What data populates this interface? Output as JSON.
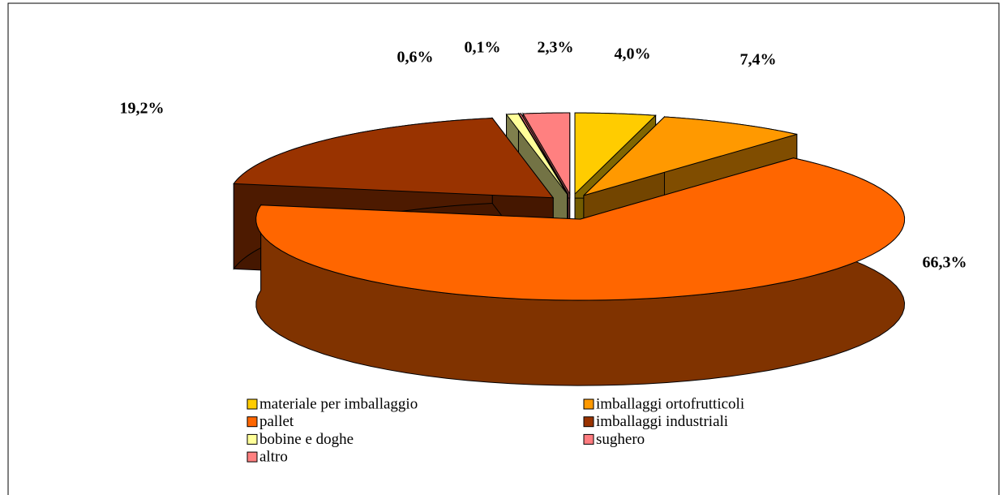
{
  "chart_data": {
    "type": "pie",
    "labels": [
      "materiale per imballaggio",
      "imballaggi ortofrutticoli",
      "pallet",
      "imballaggi industriali",
      "bobine e doghe",
      "sughero",
      "altro"
    ],
    "values": [
      4.0,
      7.4,
      66.3,
      19.2,
      0.6,
      0.1,
      2.3
    ],
    "value_labels": [
      "4,0%",
      "7,4%",
      "66,3%",
      "19,2%",
      "0,6%",
      "0,1%",
      "2,3%"
    ],
    "colors": [
      "#FFCC00",
      "#FF9900",
      "#FF6600",
      "#993300",
      "#FFFF99",
      "#FF7C80",
      "#FF8080"
    ]
  }
}
